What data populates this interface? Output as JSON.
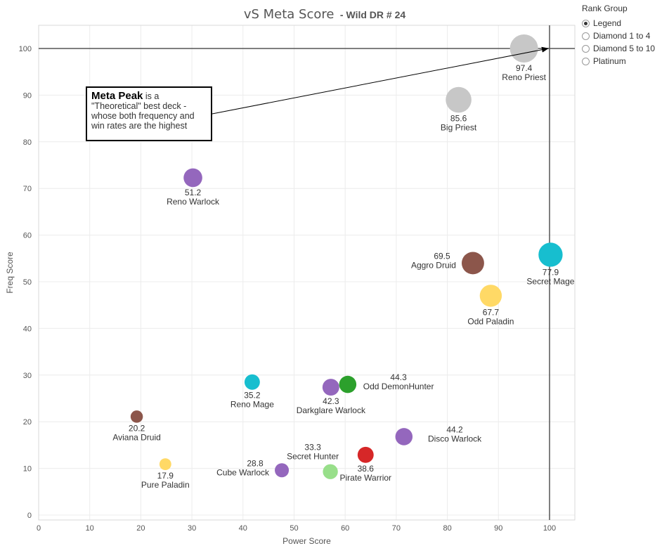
{
  "title": "vS Meta Score",
  "subtitle": "- Wild DR # 24",
  "rank_group": {
    "title": "Rank Group",
    "options": [
      "Legend",
      "Diamond 1 to 4",
      "Diamond 5 to 10",
      "Platinum"
    ],
    "selected": "Legend"
  },
  "callout": {
    "bold": "Meta Peak",
    "rest1": " is a",
    "line2": "\"Theoretical\" best deck -",
    "line3": "whose both frequency and",
    "line4": "win rates are the highest"
  },
  "chart_data": {
    "type": "scatter",
    "title": "vS Meta Score - Wild DR # 24",
    "xlabel": "Power Score",
    "ylabel": "Freq Score",
    "xlim": [
      0,
      105
    ],
    "ylim": [
      0,
      105
    ],
    "xticks": [
      0,
      10,
      20,
      30,
      40,
      50,
      60,
      70,
      80,
      90,
      100
    ],
    "yticks": [
      0,
      10,
      20,
      30,
      40,
      50,
      60,
      70,
      80,
      90,
      100
    ],
    "reference_lines": {
      "x": 100,
      "y": 100
    },
    "points": [
      {
        "name": "Reno Priest",
        "score": "97.4",
        "x": 95,
        "y": 100,
        "color": "#c7c7c7"
      },
      {
        "name": "Big Priest",
        "score": "85.6",
        "x": 82.2,
        "y": 89,
        "color": "#c7c7c7"
      },
      {
        "name": "Reno Warlock",
        "score": "51.2",
        "x": 30.2,
        "y": 72.3,
        "color": "#9467bd"
      },
      {
        "name": "Aggro Druid",
        "score": "69.5",
        "x": 85,
        "y": 54,
        "color": "#8c564b"
      },
      {
        "name": "Secret Mage",
        "score": "77.9",
        "x": 100.2,
        "y": 55.8,
        "color": "#17becf"
      },
      {
        "name": "Odd Paladin",
        "score": "67.7",
        "x": 88.5,
        "y": 47,
        "color": "#ffd966"
      },
      {
        "name": "Odd DemonHunter",
        "score": "44.3",
        "x": 60.5,
        "y": 28,
        "color": "#2ca02c"
      },
      {
        "name": "Darkglare Warlock",
        "score": "42.3",
        "x": 57.2,
        "y": 27.4,
        "color": "#9467bd"
      },
      {
        "name": "Reno Mage",
        "score": "35.2",
        "x": 41.8,
        "y": 28.5,
        "color": "#17becf"
      },
      {
        "name": "Aviana Druid",
        "score": "20.2",
        "x": 19.2,
        "y": 21.1,
        "color": "#8c564b"
      },
      {
        "name": "Disco Warlock",
        "score": "44.2",
        "x": 71.5,
        "y": 16.8,
        "color": "#9467bd"
      },
      {
        "name": "Pirate Warrior",
        "score": "38.6",
        "x": 64,
        "y": 12.9,
        "color": "#d62728"
      },
      {
        "name": "Secret Hunter",
        "score": "33.3",
        "x": 57.1,
        "y": 9.3,
        "color": "#98df8a"
      },
      {
        "name": "Cube Warlock",
        "score": "28.8",
        "x": 47.6,
        "y": 9.6,
        "color": "#9467bd"
      },
      {
        "name": "Pure Paladin",
        "score": "17.9",
        "x": 24.8,
        "y": 10.9,
        "color": "#ffd966"
      }
    ]
  }
}
